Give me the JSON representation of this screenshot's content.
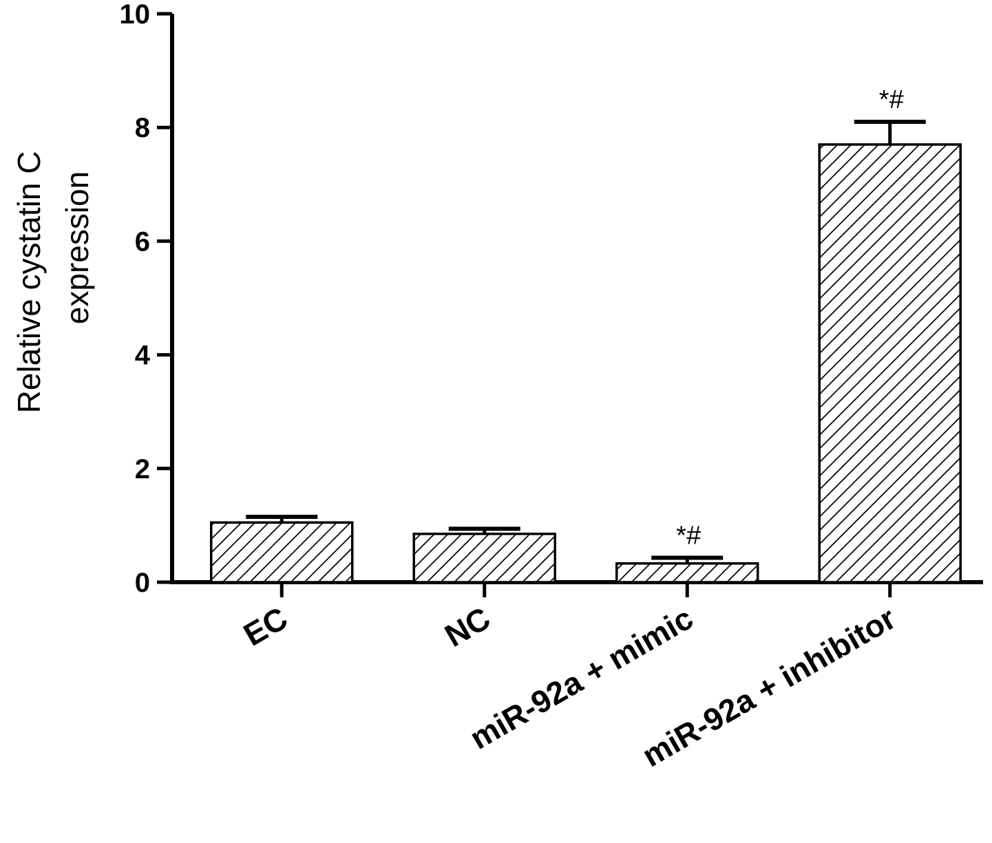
{
  "chart_data": {
    "type": "bar",
    "title": "",
    "ylabel": [
      "Relative  cystatin C",
      "expression"
    ],
    "xlabel": "",
    "ylim": [
      0,
      10
    ],
    "yticks": [
      "0",
      "2",
      "4",
      "6",
      "8",
      "10"
    ],
    "grid": false,
    "legend": "none",
    "categories": [
      "EC",
      "NC",
      "miR-92a + mimic",
      "miR-92a + inhibitor"
    ],
    "values": [
      1.05,
      0.85,
      0.33,
      7.7
    ],
    "errors": [
      0.1,
      0.09,
      0.1,
      0.4
    ],
    "annotations": [
      "",
      "",
      "*#",
      "*#"
    ],
    "bar_fill": "hatched",
    "colors": {
      "stroke": "#000000",
      "fill": "#ffffff"
    }
  }
}
